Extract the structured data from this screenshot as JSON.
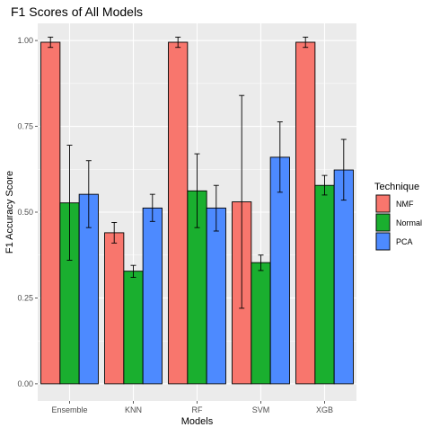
{
  "chart_data": {
    "type": "bar",
    "title": "F1 Scores of All Models",
    "xlabel": "Models",
    "ylabel": "F1 Accuracy Score",
    "categories": [
      "Ensemble",
      "KNN",
      "RF",
      "SVM",
      "XGB"
    ],
    "ylim": [
      -0.05,
      1.05
    ],
    "yticks": [
      0.0,
      0.25,
      0.5,
      0.75,
      1.0
    ],
    "ytick_labels": [
      "0.00",
      "0.25",
      "0.50",
      "0.75",
      "1.00"
    ],
    "grid": true,
    "legend": {
      "title": "Technique",
      "position": "right"
    },
    "series": [
      {
        "name": "NMF",
        "color": "#F8766D",
        "values": [
          0.995,
          0.44,
          0.995,
          0.53,
          0.995
        ],
        "err_low": [
          0.98,
          0.41,
          0.98,
          0.22,
          0.98
        ],
        "err_high": [
          1.01,
          0.47,
          1.01,
          0.84,
          1.01
        ]
      },
      {
        "name": "Normal",
        "color": "#1AAF2F",
        "values": [
          0.527,
          0.328,
          0.562,
          0.353,
          0.578
        ],
        "err_low": [
          0.36,
          0.31,
          0.455,
          0.33,
          0.55
        ],
        "err_high": [
          0.695,
          0.345,
          0.67,
          0.375,
          0.607
        ]
      },
      {
        "name": "PCA",
        "color": "#4D8AFF",
        "values": [
          0.552,
          0.512,
          0.512,
          0.66,
          0.623
        ],
        "err_low": [
          0.455,
          0.473,
          0.445,
          0.558,
          0.535
        ],
        "err_high": [
          0.65,
          0.552,
          0.578,
          0.763,
          0.712
        ]
      }
    ]
  }
}
